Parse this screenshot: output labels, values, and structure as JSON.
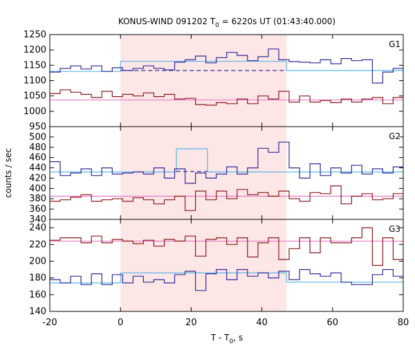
{
  "chart_data": {
    "type": "line",
    "title": "KONUS-WIND 091202 T",
    "title_sub": "0",
    "title_rest": " = 6220s UT (01:43:40.000)",
    "xlabel": "T - T",
    "xlabel_sub": "0",
    "xlabel_rest": ", s",
    "ylabel": "counts / sec",
    "xlim": [
      -20,
      80
    ],
    "xticks": [
      -20,
      0,
      20,
      40,
      60,
      80
    ],
    "shaded_interval": [
      0,
      47
    ],
    "shade_color": "#fde6e6",
    "bin_width": 2.944,
    "x_start": -20,
    "panels": [
      {
        "label": "G1",
        "ylim": [
          950,
          1250
        ],
        "yticks": [
          950,
          1000,
          1050,
          1100,
          1150,
          1200,
          1250
        ],
        "series": [
          {
            "color": "#2b2b9a",
            "values": [
              1128,
              1140,
              1148,
              1138,
              1148,
              1130,
              1142,
              1133,
              1140,
              1148,
              1140,
              1135,
              1160,
              1168,
              1180,
              1158,
              1175,
              1192,
              1182,
              1165,
              1178,
              1203,
              1168,
              1162,
              1160,
              1158,
              1168,
              1155,
              1172,
              1165,
              1168,
              1092,
              1128,
              1140,
              1150,
              1148,
              1142,
              1135,
              1142,
              1130,
              1135,
              1138,
              1140,
              1128,
              1140,
              1138,
              1148,
              1140,
              1142,
              1135,
              1138,
              1145,
              1138,
              1148
            ]
          },
          {
            "color": "#8b1a1a",
            "values": [
              1058,
              1070,
              1062,
              1055,
              1045,
              1065,
              1048,
              1055,
              1050,
              1060,
              1048,
              1055,
              1040,
              1042,
              1022,
              1020,
              1028,
              1025,
              1040,
              1025,
              1050,
              1040,
              1065,
              1030,
              1050,
              1030,
              1035,
              1028,
              1040,
              1030,
              1040,
              1045,
              1025,
              1045,
              1050,
              1038,
              1015,
              1040,
              1052,
              1035,
              1020,
              1045,
              1040,
              1028,
              1040,
              1012,
              1040,
              1052,
              1040,
              1048,
              1030,
              1045,
              1038,
              1032
            ]
          }
        ],
        "fits": [
          {
            "color": "#5ab4e6",
            "segments": [
              [
                -20,
                0,
                1130
              ],
              [
                0,
                47,
                1163
              ],
              [
                47,
                80,
                1133
              ]
            ]
          },
          {
            "color": "#e87ac8",
            "segments": [
              [
                -20,
                80,
                1037
              ]
            ]
          }
        ],
        "dashed": [
          {
            "color": "#2b2b9a",
            "x": [
              0,
              47
            ],
            "y": 1133
          }
        ]
      },
      {
        "label": "G2",
        "ylim": [
          340,
          520
        ],
        "yticks": [
          340,
          360,
          380,
          400,
          420,
          440,
          460,
          480,
          500
        ],
        "series": [
          {
            "color": "#2b2b9a",
            "values": [
              452,
              425,
              430,
              438,
              425,
              440,
              428,
              430,
              432,
              428,
              440,
              420,
              438,
              410,
              430,
              420,
              428,
              442,
              428,
              440,
              478,
              470,
              490,
              440,
              420,
              448,
              425,
              440,
              430,
              445,
              428,
              438,
              430,
              442,
              430,
              452,
              445,
              438,
              428,
              430,
              420,
              425,
              432,
              440,
              442,
              428,
              435,
              430,
              440,
              425,
              435,
              430,
              425,
              435
            ]
          },
          {
            "color": "#8b1a1a",
            "values": [
              375,
              378,
              383,
              388,
              375,
              378,
              380,
              375,
              382,
              378,
              370,
              378,
              385,
              357,
              395,
              378,
              395,
              380,
              398,
              388,
              392,
              385,
              395,
              380,
              375,
              392,
              390,
              405,
              370,
              385,
              390,
              378,
              380,
              390,
              412,
              395,
              400,
              385,
              375,
              392,
              378,
              398,
              385,
              370,
              398,
              390,
              398,
              385,
              395,
              378,
              392,
              370,
              390,
              398
            ]
          }
        ],
        "fits": [
          {
            "color": "#5ab4e6",
            "segments": [
              [
                -20,
                15.8,
                432
              ],
              [
                15.8,
                24.6,
                477
              ],
              [
                24.6,
                80,
                432
              ]
            ]
          },
          {
            "color": "#e87ac8",
            "segments": [
              [
                -20,
                80,
                385
              ]
            ]
          }
        ],
        "dashed": [
          {
            "color": "#2b2b9a",
            "x": [
              15.8,
              24.6
            ],
            "y": 433
          }
        ]
      },
      {
        "label": "G3",
        "ylim": [
          140,
          250
        ],
        "yticks": [
          140,
          160,
          180,
          200,
          220,
          240
        ],
        "series": [
          {
            "color": "#2b2b9a",
            "values": [
              178,
              174,
              182,
              172,
              185,
              172,
              184,
              174,
              182,
              175,
              178,
              174,
              184,
              188,
              165,
              185,
              190,
              178,
              190,
              182,
              186,
              180,
              188,
              178,
              190,
              185,
              182,
              186,
              175,
              172,
              172,
              184,
              190,
              182,
              178,
              175,
              182,
              176,
              170,
              165,
              172,
              175,
              183,
              178,
              170,
              175,
              165,
              158,
              172,
              175,
              168,
              162,
              170,
              175
            ]
          },
          {
            "color": "#8b1a1a",
            "values": [
              225,
              228,
              228,
              222,
              230,
              222,
              226,
              224,
              221,
              225,
              218,
              226,
              224,
              230,
              206,
              226,
              228,
              220,
              228,
              205,
              222,
              228,
              202,
              215,
              228,
              210,
              228,
              222,
              222,
              228,
              240,
              195,
              228,
              202,
              220,
              226,
              225,
              220,
              234,
              222,
              218,
              232,
              228,
              222,
              228,
              218,
              222,
              225,
              218,
              235,
              240,
              225,
              212,
              228
            ]
          }
        ],
        "fits": [
          {
            "color": "#5ab4e6",
            "segments": [
              [
                -20,
                0,
                174
              ],
              [
                0,
                47,
                186
              ],
              [
                47,
                80,
                175
              ]
            ]
          },
          {
            "color": "#e87ac8",
            "segments": [
              [
                -20,
                80,
                224
              ]
            ]
          }
        ],
        "dashed": []
      }
    ]
  }
}
